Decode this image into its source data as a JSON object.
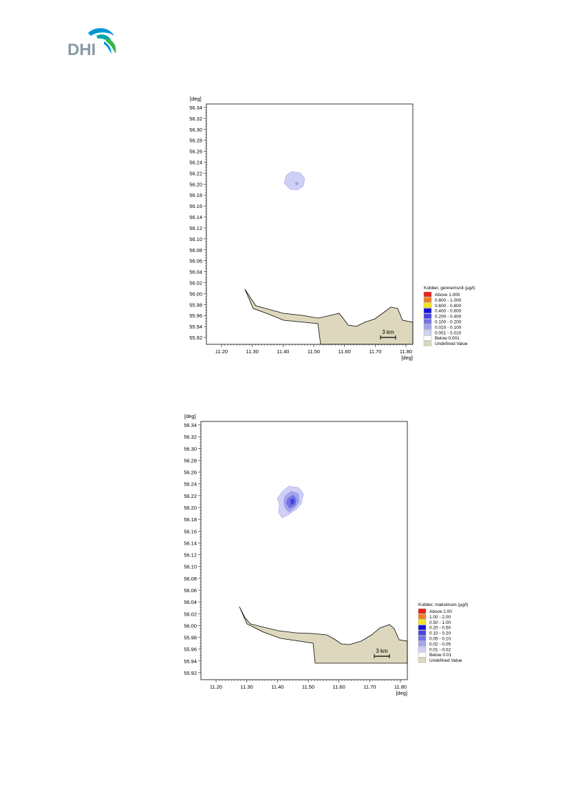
{
  "logo": {
    "text": "DHI",
    "colors": {
      "text": "#8a9aa6",
      "wave1": "#0097d7",
      "wave2": "#39b54a",
      "wave3": "#00a9a5"
    }
  },
  "maps": [
    {
      "id": "mean",
      "axis_unit_y": "[deg]",
      "axis_unit_x": "[deg]",
      "y_ticks": [
        "56.34",
        "56.32",
        "56.30",
        "56.28",
        "56.26",
        "56.24",
        "56.22",
        "56.20",
        "56.18",
        "56.16",
        "56.14",
        "56.12",
        "56.10",
        "56.08",
        "56.06",
        "56.04",
        "56.02",
        "56.00",
        "55.98",
        "55.96",
        "55.94",
        "55.92"
      ],
      "x_ticks": [
        "11.20",
        "11.30",
        "11.40",
        "11.50",
        "11.60",
        "11.70",
        "11.80"
      ],
      "scale_label": "3 km",
      "legend": {
        "title": "Kobber, gennemsnit (µg/l)",
        "entries": [
          {
            "label": "Above  1.000",
            "color": "#e8201c"
          },
          {
            "label": "0.800 - 1.000",
            "color": "#f07f1e"
          },
          {
            "label": "0.600 - 0.800",
            "color": "#f5e61c"
          },
          {
            "label": "0.400 - 0.600",
            "color": "#1515d8"
          },
          {
            "label": "0.200 - 0.400",
            "color": "#4545e0"
          },
          {
            "label": "0.100 - 0.200",
            "color": "#7373e6"
          },
          {
            "label": "0.010 - 0.100",
            "color": "#a3a3ee"
          },
          {
            "label": "0.001 - 0.010",
            "color": "#d0d0f6"
          },
          {
            "label": "Below  0.001",
            "color": "#ffffff"
          },
          {
            "label": "Undefined Value",
            "color": "#ddd8bd"
          }
        ]
      }
    },
    {
      "id": "max",
      "axis_unit_y": "[deg]",
      "axis_unit_x": "[deg]",
      "y_ticks": [
        "56.34",
        "56.32",
        "56.30",
        "56.28",
        "56.26",
        "56.24",
        "56.22",
        "56.20",
        "56.18",
        "56.16",
        "56.14",
        "56.12",
        "56.10",
        "56.08",
        "56.06",
        "56.04",
        "56.02",
        "56.00",
        "55.98",
        "55.96",
        "55.94",
        "55.92"
      ],
      "x_ticks": [
        "11.20",
        "11.30",
        "11.40",
        "11.50",
        "11.60",
        "11.70",
        "11.80"
      ],
      "scale_label": "3 km",
      "legend": {
        "title": "Kobber, maksimum (µg/l)",
        "entries": [
          {
            "label": "Above 2.00",
            "color": "#e8201c"
          },
          {
            "label": "1.00 - 2.00",
            "color": "#f07f1e"
          },
          {
            "label": "0.50 - 1.00",
            "color": "#f5e61c"
          },
          {
            "label": "0.20 - 0.50",
            "color": "#1515d8"
          },
          {
            "label": "0.10 - 0.20",
            "color": "#4545e0"
          },
          {
            "label": "0.05 - 0.10",
            "color": "#7373e6"
          },
          {
            "label": "0.02 - 0.05",
            "color": "#a3a3ee"
          },
          {
            "label": "0.01 - 0.02",
            "color": "#d0d0f6"
          },
          {
            "label": "Below 0.01",
            "color": "#ffffff"
          },
          {
            "label": "Undefined Value",
            "color": "#ddd8bd"
          }
        ]
      }
    }
  ]
}
